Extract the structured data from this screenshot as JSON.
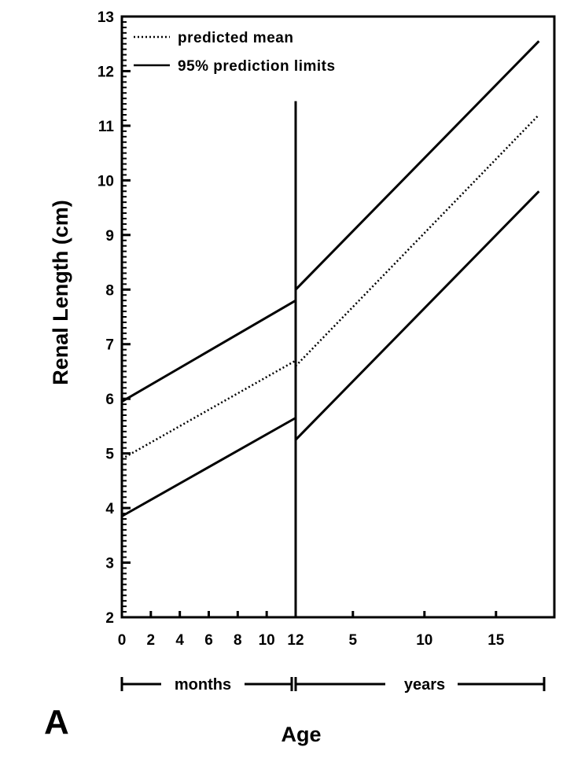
{
  "chart_data": {
    "type": "line",
    "panel_label": "A",
    "xlabel": "Age",
    "ylabel": "Renal Length (cm)",
    "ylim": [
      2,
      13
    ],
    "y_ticks": [
      "2",
      "3",
      "4",
      "5",
      "6",
      "7",
      "8",
      "9",
      "10",
      "11",
      "12",
      "13"
    ],
    "x_segments": [
      {
        "unit": "months",
        "range": [
          0,
          12
        ],
        "tick_values": [
          0,
          2,
          4,
          6,
          8,
          10,
          12
        ],
        "tick_labels": [
          "0",
          "2",
          "4",
          "6",
          "8",
          "10",
          "12"
        ]
      },
      {
        "unit": "years",
        "range": [
          1,
          18
        ],
        "tick_values": [
          5,
          10,
          15
        ],
        "tick_labels": [
          "5",
          "10",
          "15"
        ]
      }
    ],
    "range_labels": {
      "months": "months",
      "years": "years"
    },
    "legend": {
      "position": "top-left",
      "entries": [
        {
          "label": "predicted mean",
          "style": "dotted"
        },
        {
          "label": "95% prediction limits",
          "style": "solid"
        }
      ]
    },
    "series": [
      {
        "name": "predicted mean",
        "style": "dotted",
        "segments": [
          {
            "unit": "months",
            "x": [
              0,
              12
            ],
            "y": [
              4.9,
              6.7
            ]
          },
          {
            "unit": "years",
            "x": [
              1,
              18
            ],
            "y": [
              6.6,
              11.2
            ]
          }
        ]
      },
      {
        "role": "upper prediction limit",
        "style": "solid",
        "segments": [
          {
            "unit": "months",
            "x": [
              0,
              12
            ],
            "y": [
              5.95,
              7.8
            ]
          },
          {
            "unit": "years",
            "x": [
              1,
              18
            ],
            "y": [
              8.0,
              12.55
            ]
          }
        ]
      },
      {
        "role": "lower prediction limit",
        "style": "solid",
        "segments": [
          {
            "unit": "months",
            "x": [
              0,
              12
            ],
            "y": [
              3.85,
              5.65
            ]
          },
          {
            "unit": "years",
            "x": [
              1,
              18
            ],
            "y": [
              5.25,
              9.8
            ]
          }
        ]
      }
    ],
    "divider": {
      "at": "12 months / 1 year",
      "y_top": 11.45
    }
  }
}
